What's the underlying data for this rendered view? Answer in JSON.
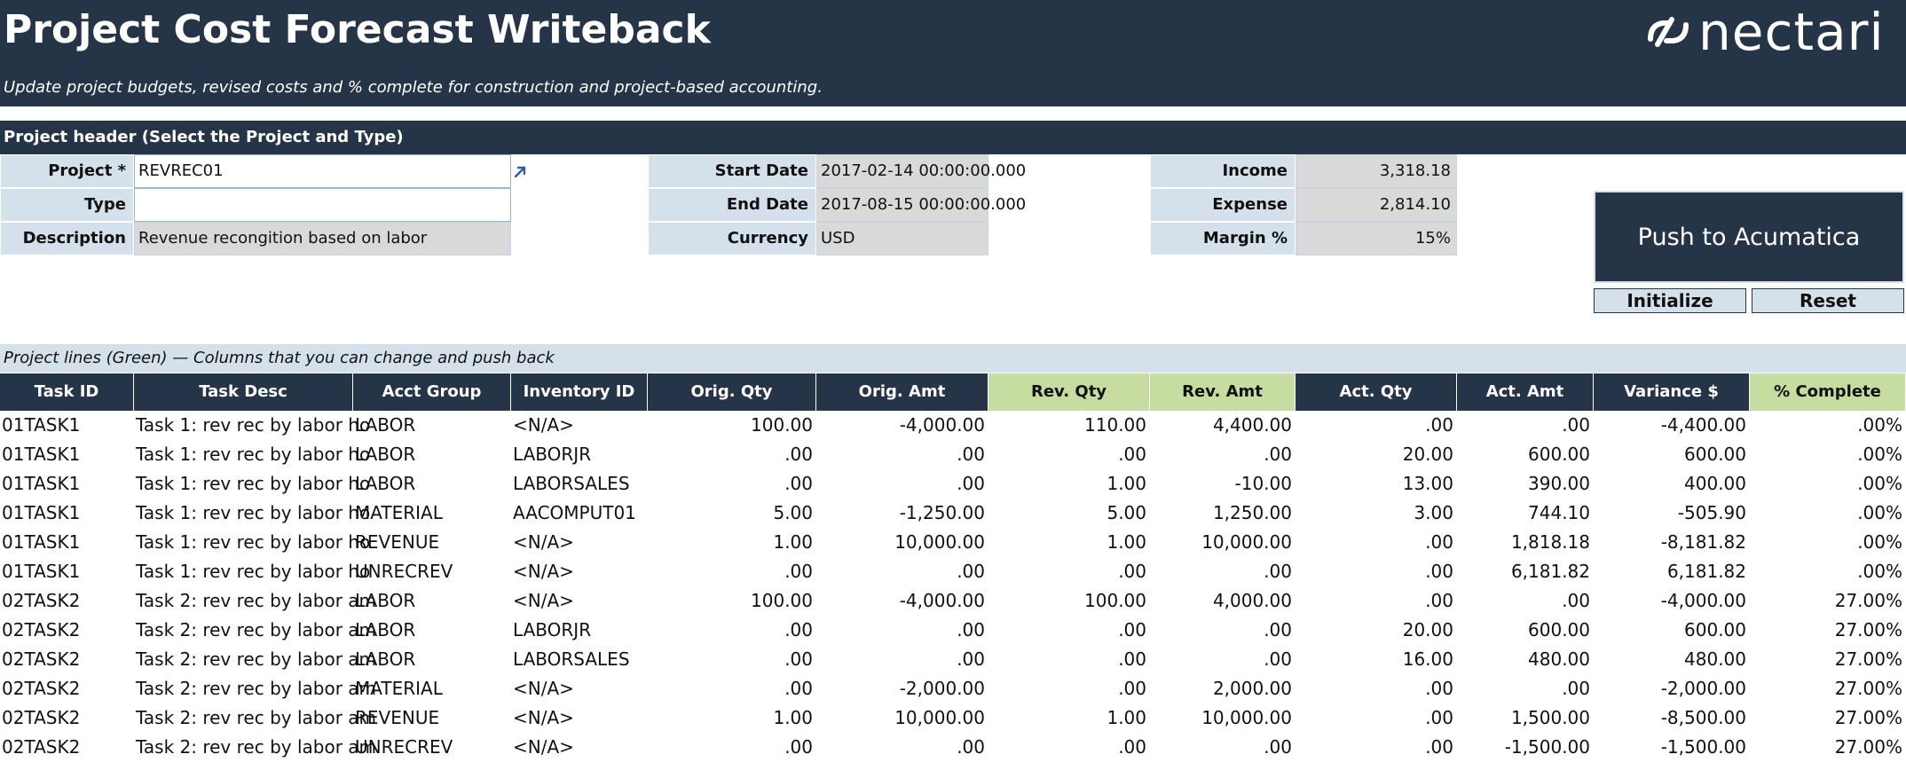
{
  "header": {
    "title": "Project Cost Forecast Writeback",
    "subtitle": "Update project budgets, revised costs and % complete for construction and project-based accounting.",
    "logo_text": "nectari",
    "logo_icon": "nectari-logo-icon"
  },
  "project_header": {
    "bar_label": "Project header  (Select the Project and Type)",
    "project_label": "Project *",
    "project_value": "REVREC01",
    "type_label": "Type",
    "type_value": "",
    "description_label": "Description",
    "description_value": "Revenue recongition based on labor",
    "start_date_label": "Start Date",
    "start_date_value": "2017-02-14 00:00:00.000",
    "end_date_label": "End Date",
    "end_date_value": "2017-08-15 00:00:00.000",
    "currency_label": "Currency",
    "currency_value": "USD",
    "income_label": "Income",
    "income_value": "3,318.18",
    "expense_label": "Expense",
    "expense_value": "2,814.10",
    "margin_label": "Margin %",
    "margin_value": "15%"
  },
  "buttons": {
    "push": "Push to Acumatica",
    "initialize": "Initialize",
    "reset": "Reset"
  },
  "lines_caption": "Project lines  (Green) — Columns that you can change and push back",
  "colors": {
    "navy": "#253446",
    "light_blue": "#d5e1ea",
    "editable_green": "#c6dca1",
    "readonly_gray": "#d9d9d9"
  },
  "table": {
    "columns": [
      "Task ID",
      "Task Desc",
      "Acct Group",
      "Inventory ID",
      "Orig. Qty",
      "Orig. Amt",
      "Rev. Qty",
      "Rev. Amt",
      "Act. Qty",
      "Act. Amt",
      "Variance $",
      "% Complete"
    ],
    "editable_columns": [
      "Rev. Qty",
      "Rev. Amt",
      "% Complete"
    ],
    "rows": [
      [
        "01TASK1",
        "Task 1: rev rec by labor ho",
        "LABOR",
        "<N/A>",
        "100.00",
        "-4,000.00",
        "110.00",
        "4,400.00",
        ".00",
        ".00",
        "-4,400.00",
        ".00%"
      ],
      [
        "01TASK1",
        "Task 1: rev rec by labor ho",
        "LABOR",
        "LABORJR",
        ".00",
        ".00",
        ".00",
        ".00",
        "20.00",
        "600.00",
        "600.00",
        ".00%"
      ],
      [
        "01TASK1",
        "Task 1: rev rec by labor ho",
        "LABOR",
        "LABORSALES",
        ".00",
        ".00",
        "1.00",
        "-10.00",
        "13.00",
        "390.00",
        "400.00",
        ".00%"
      ],
      [
        "01TASK1",
        "Task 1: rev rec by labor ho",
        "MATERIAL",
        "AACOMPUT01",
        "5.00",
        "-1,250.00",
        "5.00",
        "1,250.00",
        "3.00",
        "744.10",
        "-505.90",
        ".00%"
      ],
      [
        "01TASK1",
        "Task 1: rev rec by labor ho",
        "REVENUE",
        "<N/A>",
        "1.00",
        "10,000.00",
        "1.00",
        "10,000.00",
        ".00",
        "1,818.18",
        "-8,181.82",
        ".00%"
      ],
      [
        "01TASK1",
        "Task 1: rev rec by labor ho",
        "UNRECREV",
        "<N/A>",
        ".00",
        ".00",
        ".00",
        ".00",
        ".00",
        "6,181.82",
        "6,181.82",
        ".00%"
      ],
      [
        "02TASK2",
        "Task 2: rev rec by labor am",
        "LABOR",
        "<N/A>",
        "100.00",
        "-4,000.00",
        "100.00",
        "4,000.00",
        ".00",
        ".00",
        "-4,000.00",
        "27.00%"
      ],
      [
        "02TASK2",
        "Task 2: rev rec by labor am",
        "LABOR",
        "LABORJR",
        ".00",
        ".00",
        ".00",
        ".00",
        "20.00",
        "600.00",
        "600.00",
        "27.00%"
      ],
      [
        "02TASK2",
        "Task 2: rev rec by labor am",
        "LABOR",
        "LABORSALES",
        ".00",
        ".00",
        ".00",
        ".00",
        "16.00",
        "480.00",
        "480.00",
        "27.00%"
      ],
      [
        "02TASK2",
        "Task 2: rev rec by labor am",
        "MATERIAL",
        "<N/A>",
        ".00",
        "-2,000.00",
        ".00",
        "2,000.00",
        ".00",
        ".00",
        "-2,000.00",
        "27.00%"
      ],
      [
        "02TASK2",
        "Task 2: rev rec by labor am",
        "REVENUE",
        "<N/A>",
        "1.00",
        "10,000.00",
        "1.00",
        "10,000.00",
        ".00",
        "1,500.00",
        "-8,500.00",
        "27.00%"
      ],
      [
        "02TASK2",
        "Task 2: rev rec by labor am",
        "UNRECREV",
        "<N/A>",
        ".00",
        ".00",
        ".00",
        ".00",
        ".00",
        "-1,500.00",
        "-1,500.00",
        "27.00%"
      ]
    ]
  }
}
